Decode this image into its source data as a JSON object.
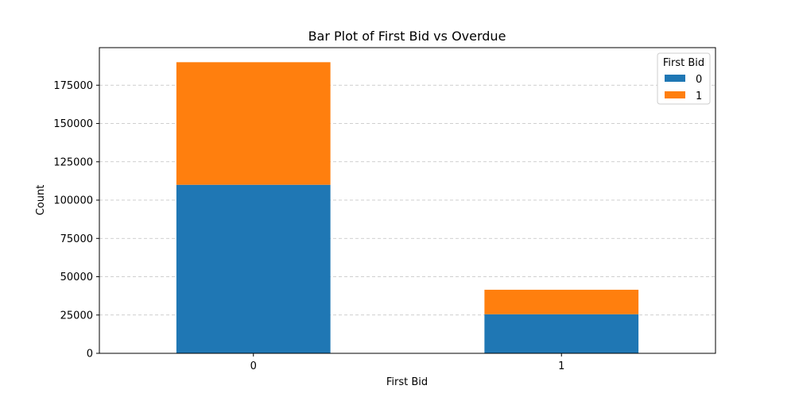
{
  "chart_data": {
    "type": "bar",
    "stacked": true,
    "title": "Bar Plot of First Bid vs Overdue",
    "xlabel": "First Bid",
    "ylabel": "Count",
    "categories": [
      "0",
      "1"
    ],
    "series": [
      {
        "name": "0",
        "color": "#1f77b4",
        "values": [
          110000,
          25500
        ]
      },
      {
        "name": "1",
        "color": "#ff7f0e",
        "values": [
          80000,
          16000
        ]
      }
    ],
    "ylim": [
      0,
      199500
    ],
    "yticks": [
      0,
      25000,
      50000,
      75000,
      100000,
      125000,
      150000,
      175000
    ],
    "ytick_labels": [
      "0",
      "25000",
      "50000",
      "75000",
      "100000",
      "125000",
      "150000",
      "175000"
    ],
    "grid": "y-dashed",
    "legend": {
      "title": "First Bid",
      "placement": "top-right"
    }
  }
}
